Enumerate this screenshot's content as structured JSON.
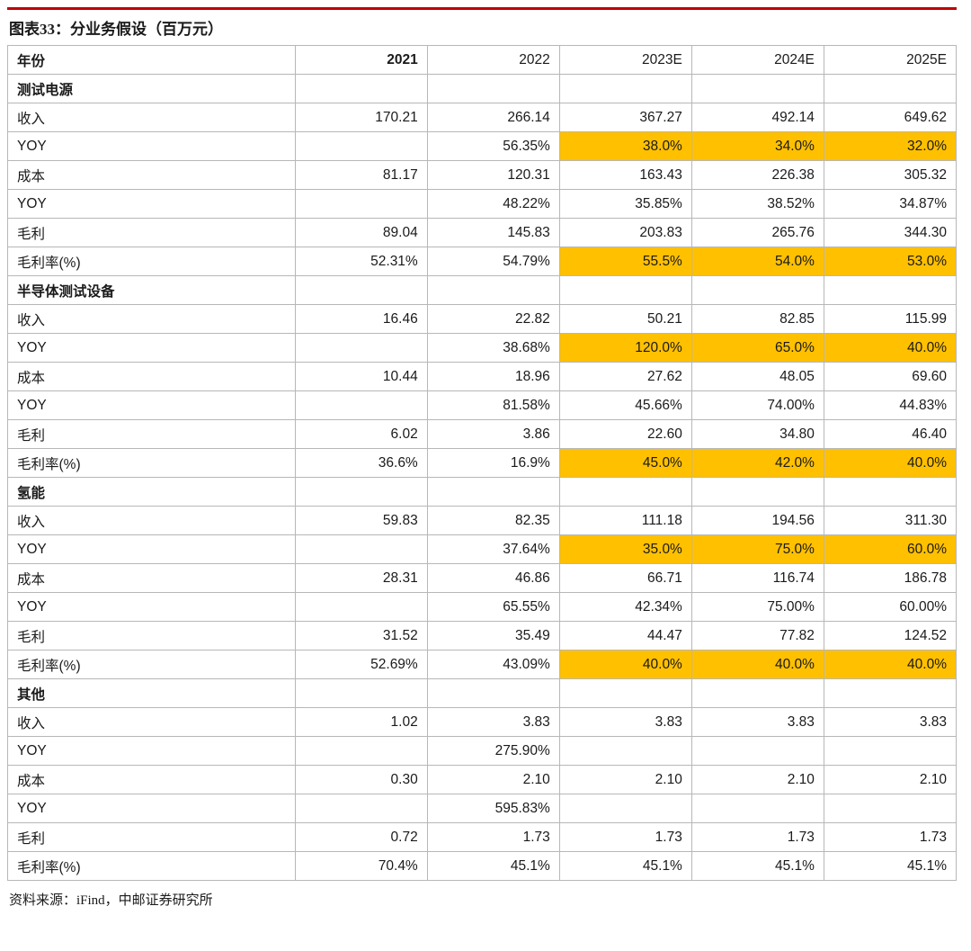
{
  "page": {
    "title": "图表33：分业务假设（百万元）",
    "source": "资料来源：iFind，中邮证券研究所"
  },
  "colors": {
    "top_rule": "#c00000",
    "highlight": "#ffc000",
    "grid": "#b7b7b7"
  },
  "table": {
    "header": [
      "年份",
      "2021",
      "2022",
      "2023E",
      "2024E",
      "2025E"
    ],
    "rows": [
      {
        "label": "测试电源",
        "section": true,
        "values": [
          "",
          "",
          "",
          "",
          ""
        ]
      },
      {
        "label": "收入",
        "values": [
          "170.21",
          "266.14",
          "367.27",
          "492.14",
          "649.62"
        ]
      },
      {
        "label": "YOY",
        "values": [
          "",
          "56.35%",
          "38.0%",
          "34.0%",
          "32.0%"
        ],
        "highlight": [
          2,
          3,
          4
        ]
      },
      {
        "label": "成本",
        "values": [
          "81.17",
          "120.31",
          "163.43",
          "226.38",
          "305.32"
        ]
      },
      {
        "label": "YOY",
        "values": [
          "",
          "48.22%",
          "35.85%",
          "38.52%",
          "34.87%"
        ]
      },
      {
        "label": "毛利",
        "values": [
          "89.04",
          "145.83",
          "203.83",
          "265.76",
          "344.30"
        ]
      },
      {
        "label": "毛利率(%)",
        "values": [
          "52.31%",
          "54.79%",
          "55.5%",
          "54.0%",
          "53.0%"
        ],
        "highlight": [
          2,
          3,
          4
        ]
      },
      {
        "label": "半导体测试设备",
        "section": true,
        "values": [
          "",
          "",
          "",
          "",
          ""
        ]
      },
      {
        "label": "收入",
        "values": [
          "16.46",
          "22.82",
          "50.21",
          "82.85",
          "115.99"
        ]
      },
      {
        "label": "YOY",
        "values": [
          "",
          "38.68%",
          "120.0%",
          "65.0%",
          "40.0%"
        ],
        "highlight": [
          2,
          3,
          4
        ]
      },
      {
        "label": "成本",
        "values": [
          "10.44",
          "18.96",
          "27.62",
          "48.05",
          "69.60"
        ]
      },
      {
        "label": "YOY",
        "values": [
          "",
          "81.58%",
          "45.66%",
          "74.00%",
          "44.83%"
        ]
      },
      {
        "label": "毛利",
        "values": [
          "6.02",
          "3.86",
          "22.60",
          "34.80",
          "46.40"
        ]
      },
      {
        "label": "毛利率(%)",
        "values": [
          "36.6%",
          "16.9%",
          "45.0%",
          "42.0%",
          "40.0%"
        ],
        "highlight": [
          2,
          3,
          4
        ]
      },
      {
        "label": "氢能",
        "section": true,
        "values": [
          "",
          "",
          "",
          "",
          ""
        ]
      },
      {
        "label": "收入",
        "values": [
          "59.83",
          "82.35",
          "111.18",
          "194.56",
          "311.30"
        ]
      },
      {
        "label": "YOY",
        "values": [
          "",
          "37.64%",
          "35.0%",
          "75.0%",
          "60.0%"
        ],
        "highlight": [
          2,
          3,
          4
        ]
      },
      {
        "label": "成本",
        "values": [
          "28.31",
          "46.86",
          "66.71",
          "116.74",
          "186.78"
        ]
      },
      {
        "label": "YOY",
        "values": [
          "",
          "65.55%",
          "42.34%",
          "75.00%",
          "60.00%"
        ]
      },
      {
        "label": "毛利",
        "values": [
          "31.52",
          "35.49",
          "44.47",
          "77.82",
          "124.52"
        ]
      },
      {
        "label": "毛利率(%)",
        "values": [
          "52.69%",
          "43.09%",
          "40.0%",
          "40.0%",
          "40.0%"
        ],
        "highlight": [
          2,
          3,
          4
        ]
      },
      {
        "label": "其他",
        "section": true,
        "values": [
          "",
          "",
          "",
          "",
          ""
        ]
      },
      {
        "label": "收入",
        "values": [
          "1.02",
          "3.83",
          "3.83",
          "3.83",
          "3.83"
        ]
      },
      {
        "label": "YOY",
        "values": [
          "",
          "275.90%",
          "",
          "",
          ""
        ]
      },
      {
        "label": "成本",
        "values": [
          "0.30",
          "2.10",
          "2.10",
          "2.10",
          "2.10"
        ]
      },
      {
        "label": "YOY",
        "values": [
          "",
          "595.83%",
          "",
          "",
          ""
        ]
      },
      {
        "label": "毛利",
        "values": [
          "0.72",
          "1.73",
          "1.73",
          "1.73",
          "1.73"
        ]
      },
      {
        "label": "毛利率(%)",
        "values": [
          "70.4%",
          "45.1%",
          "45.1%",
          "45.1%",
          "45.1%"
        ]
      }
    ]
  }
}
